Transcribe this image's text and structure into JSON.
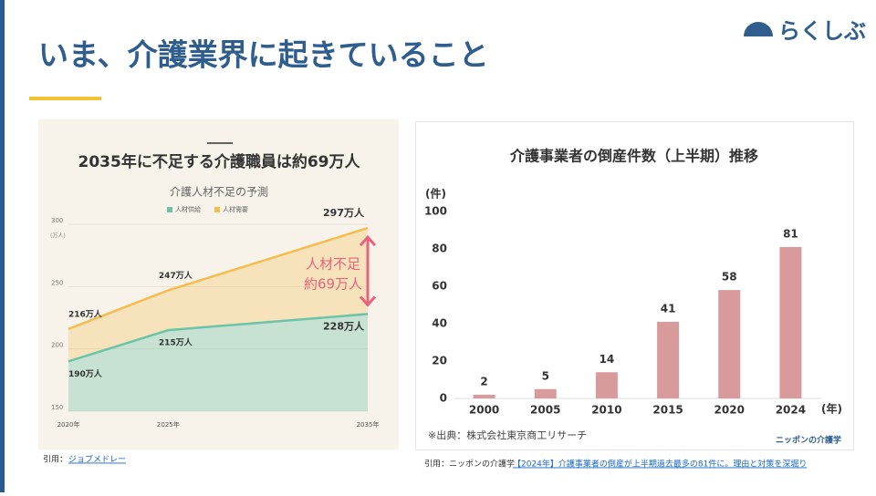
{
  "slide": {
    "title": "いま、介護業界に起きていること",
    "logo": "らくしぶ",
    "citations": [
      {
        "prefix": "引用：",
        "link": "ジョブメドレー"
      },
      {
        "prefix": "引用：ニッポンの介護学",
        "link": "【2024年】介護事業者の倒産が上半期過去最多の81件に。理由と対策を深堀り"
      }
    ]
  },
  "chart_data": [
    {
      "type": "area",
      "title": "2035年に不足する介護職員は約69万人",
      "subtitle": "介護人材不足の予測",
      "x": [
        2020,
        2025,
        2035
      ],
      "xlim": [
        2020,
        2035
      ],
      "xticks": [
        {
          "value": 2020,
          "label": "2020年"
        },
        {
          "value": 2025,
          "label": "2025年"
        },
        {
          "value": 2035,
          "label": "2035年"
        }
      ],
      "ylim": [
        150,
        300
      ],
      "yticks": [
        150,
        200,
        250,
        300
      ],
      "y_unit": "(万人)",
      "grid": true,
      "series": [
        {
          "name": "人材供給",
          "color": "#6cc3a8",
          "values": [
            190,
            215,
            228
          ],
          "value_labels": [
            "190万人",
            "215万人",
            "228万人"
          ]
        },
        {
          "name": "人材需要",
          "color": "#f3bd4f",
          "values": [
            216,
            247,
            297
          ],
          "value_labels": [
            "216万人",
            "247万人",
            "297万人"
          ]
        }
      ],
      "annotation": [
        "人材不足",
        "約69万人"
      ]
    },
    {
      "type": "bar",
      "title": "介護事業者の倒産件数（上半期）推移",
      "categories": [
        "2000",
        "2005",
        "2010",
        "2015",
        "2020",
        "2024"
      ],
      "values": [
        2,
        5,
        14,
        41,
        58,
        81
      ],
      "color": "#d99a9c",
      "ylim": [
        0,
        100
      ],
      "yticks": [
        0,
        20,
        40,
        60,
        80,
        100
      ],
      "y_unit": "(件)",
      "x_unit": "(年)",
      "source": "※出典：株式会社東京商工リサーチ",
      "logo": "ニッポンの介護学"
    }
  ]
}
